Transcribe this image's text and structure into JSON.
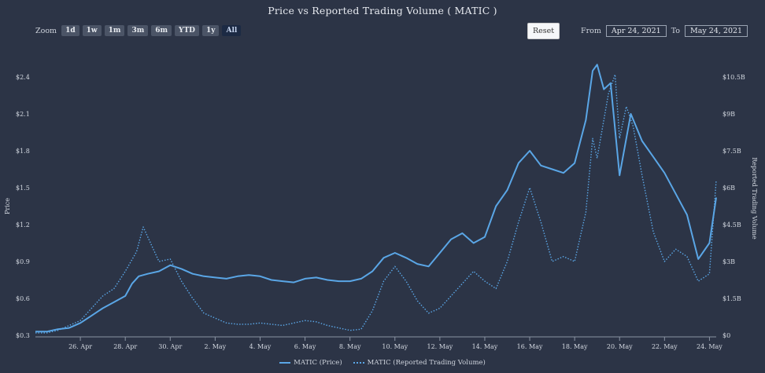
{
  "title": "Price vs Reported Trading Volume ( MATIC )",
  "zoom": {
    "label": "Zoom",
    "buttons": [
      "1d",
      "1w",
      "1m",
      "3m",
      "6m",
      "YTD",
      "1y",
      "All"
    ],
    "active": "All"
  },
  "reset_label": "Reset",
  "range": {
    "from_label": "From",
    "from": "Apr 24, 2021",
    "to_label": "To",
    "to": "May 24, 2021"
  },
  "colors": {
    "background": "#2c3446",
    "series": "#5aa6e6"
  },
  "chart_data": {
    "type": "line",
    "xlim": [
      0,
      30.3
    ],
    "x_ticks": [
      {
        "x": 2,
        "label": "26. Apr"
      },
      {
        "x": 4,
        "label": "28. Apr"
      },
      {
        "x": 6,
        "label": "30. Apr"
      },
      {
        "x": 8,
        "label": "2. May"
      },
      {
        "x": 10,
        "label": "4. May"
      },
      {
        "x": 12,
        "label": "6. May"
      },
      {
        "x": 14,
        "label": "8. May"
      },
      {
        "x": 16,
        "label": "10. May"
      },
      {
        "x": 18,
        "label": "12. May"
      },
      {
        "x": 20,
        "label": "14. May"
      },
      {
        "x": 22,
        "label": "16. May"
      },
      {
        "x": 24,
        "label": "18. May"
      },
      {
        "x": 26,
        "label": "20. May"
      },
      {
        "x": 28,
        "label": "22. May"
      },
      {
        "x": 30,
        "label": "24. May"
      }
    ],
    "y_left": {
      "label": "Price",
      "min": 0.3,
      "max": 2.4,
      "ticks": [
        0.3,
        0.6,
        0.9,
        1.2,
        1.5,
        1.8,
        2.1,
        2.4
      ],
      "tick_labels": [
        "$0.3",
        "$0.6",
        "$0.9",
        "$1.2",
        "$1.5",
        "$1.8",
        "$2.1",
        "$2.4"
      ]
    },
    "y_right": {
      "label": "Reported Trading Volume",
      "min": 0,
      "max": 10.5,
      "ticks": [
        0,
        1.5,
        3,
        4.5,
        6,
        7.5,
        9,
        10.5
      ],
      "tick_labels": [
        "$0",
        "$1.5B",
        "$3B",
        "$4.5B",
        "$6B",
        "$7.5B",
        "$9B",
        "$10.5B"
      ]
    },
    "series": [
      {
        "name": "MATIC (Price)",
        "axis": "left",
        "style": "solid",
        "points": [
          [
            0,
            0.33
          ],
          [
            0.5,
            0.33
          ],
          [
            1,
            0.35
          ],
          [
            1.5,
            0.36
          ],
          [
            2,
            0.4
          ],
          [
            2.5,
            0.46
          ],
          [
            3,
            0.52
          ],
          [
            3.5,
            0.57
          ],
          [
            4,
            0.62
          ],
          [
            4.3,
            0.72
          ],
          [
            4.6,
            0.78
          ],
          [
            5,
            0.8
          ],
          [
            5.5,
            0.82
          ],
          [
            6,
            0.87
          ],
          [
            6.5,
            0.84
          ],
          [
            7,
            0.8
          ],
          [
            7.5,
            0.78
          ],
          [
            8,
            0.77
          ],
          [
            8.5,
            0.76
          ],
          [
            9,
            0.78
          ],
          [
            9.5,
            0.79
          ],
          [
            10,
            0.78
          ],
          [
            10.5,
            0.75
          ],
          [
            11,
            0.74
          ],
          [
            11.5,
            0.73
          ],
          [
            12,
            0.76
          ],
          [
            12.5,
            0.77
          ],
          [
            13,
            0.75
          ],
          [
            13.5,
            0.74
          ],
          [
            14,
            0.74
          ],
          [
            14.5,
            0.76
          ],
          [
            15,
            0.82
          ],
          [
            15.5,
            0.93
          ],
          [
            16,
            0.97
          ],
          [
            16.5,
            0.93
          ],
          [
            17,
            0.88
          ],
          [
            17.5,
            0.86
          ],
          [
            18,
            0.97
          ],
          [
            18.5,
            1.08
          ],
          [
            19,
            1.13
          ],
          [
            19.5,
            1.05
          ],
          [
            20,
            1.1
          ],
          [
            20.5,
            1.35
          ],
          [
            21,
            1.48
          ],
          [
            21.5,
            1.7
          ],
          [
            22,
            1.8
          ],
          [
            22.5,
            1.68
          ],
          [
            23,
            1.65
          ],
          [
            23.5,
            1.62
          ],
          [
            24,
            1.7
          ],
          [
            24.5,
            2.05
          ],
          [
            24.8,
            2.45
          ],
          [
            25,
            2.5
          ],
          [
            25.3,
            2.3
          ],
          [
            25.6,
            2.35
          ],
          [
            26,
            1.6
          ],
          [
            26.5,
            2.1
          ],
          [
            27,
            1.88
          ],
          [
            27.5,
            1.75
          ],
          [
            28,
            1.62
          ],
          [
            28.5,
            1.45
          ],
          [
            29,
            1.28
          ],
          [
            29.5,
            0.92
          ],
          [
            30,
            1.05
          ],
          [
            30.3,
            1.42
          ]
        ]
      },
      {
        "name": "MATIC (Reported Trading Volume)",
        "axis": "right",
        "style": "dotted",
        "points": [
          [
            0,
            0.1
          ],
          [
            0.5,
            0.1
          ],
          [
            1,
            0.2
          ],
          [
            1.5,
            0.4
          ],
          [
            2,
            0.6
          ],
          [
            2.5,
            1.1
          ],
          [
            3,
            1.6
          ],
          [
            3.5,
            1.9
          ],
          [
            4,
            2.6
          ],
          [
            4.5,
            3.4
          ],
          [
            4.8,
            4.4
          ],
          [
            5,
            4.0
          ],
          [
            5.5,
            3.0
          ],
          [
            6,
            3.1
          ],
          [
            6.5,
            2.2
          ],
          [
            7,
            1.5
          ],
          [
            7.5,
            0.9
          ],
          [
            8,
            0.7
          ],
          [
            8.5,
            0.5
          ],
          [
            9,
            0.45
          ],
          [
            9.5,
            0.45
          ],
          [
            10,
            0.5
          ],
          [
            10.5,
            0.45
          ],
          [
            11,
            0.4
          ],
          [
            11.5,
            0.5
          ],
          [
            12,
            0.6
          ],
          [
            12.5,
            0.55
          ],
          [
            13,
            0.4
          ],
          [
            13.5,
            0.3
          ],
          [
            14,
            0.2
          ],
          [
            14.5,
            0.25
          ],
          [
            15,
            1.0
          ],
          [
            15.5,
            2.2
          ],
          [
            16,
            2.8
          ],
          [
            16.5,
            2.2
          ],
          [
            17,
            1.4
          ],
          [
            17.5,
            0.9
          ],
          [
            18,
            1.1
          ],
          [
            18.5,
            1.6
          ],
          [
            19,
            2.1
          ],
          [
            19.5,
            2.6
          ],
          [
            20,
            2.2
          ],
          [
            20.5,
            1.9
          ],
          [
            21,
            3.0
          ],
          [
            21.5,
            4.6
          ],
          [
            22,
            6.0
          ],
          [
            22.5,
            4.6
          ],
          [
            23,
            3.0
          ],
          [
            23.5,
            3.2
          ],
          [
            24,
            3.0
          ],
          [
            24.5,
            5.0
          ],
          [
            24.8,
            8.0
          ],
          [
            25,
            7.2
          ],
          [
            25.5,
            9.8
          ],
          [
            25.8,
            10.6
          ],
          [
            26,
            8.0
          ],
          [
            26.3,
            9.3
          ],
          [
            26.6,
            8.5
          ],
          [
            27,
            6.5
          ],
          [
            27.5,
            4.2
          ],
          [
            28,
            3.0
          ],
          [
            28.5,
            3.5
          ],
          [
            29,
            3.2
          ],
          [
            29.5,
            2.2
          ],
          [
            30,
            2.5
          ],
          [
            30.3,
            6.3
          ]
        ]
      }
    ],
    "legend": {
      "position": "bottom-center",
      "items": [
        "MATIC (Price)",
        "MATIC (Reported Trading Volume)"
      ]
    },
    "grid": false
  }
}
